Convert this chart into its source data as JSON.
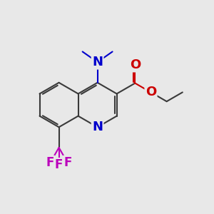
{
  "bg_color": "#e8e8e8",
  "bond_color": "#3a3a3a",
  "bond_width": 1.5,
  "atom_colors": {
    "N": "#0000cc",
    "O": "#cc0000",
    "F": "#bb00bb",
    "C": "#3a3a3a"
  },
  "font_size_N": 13,
  "font_size_O": 13,
  "font_size_F": 12
}
